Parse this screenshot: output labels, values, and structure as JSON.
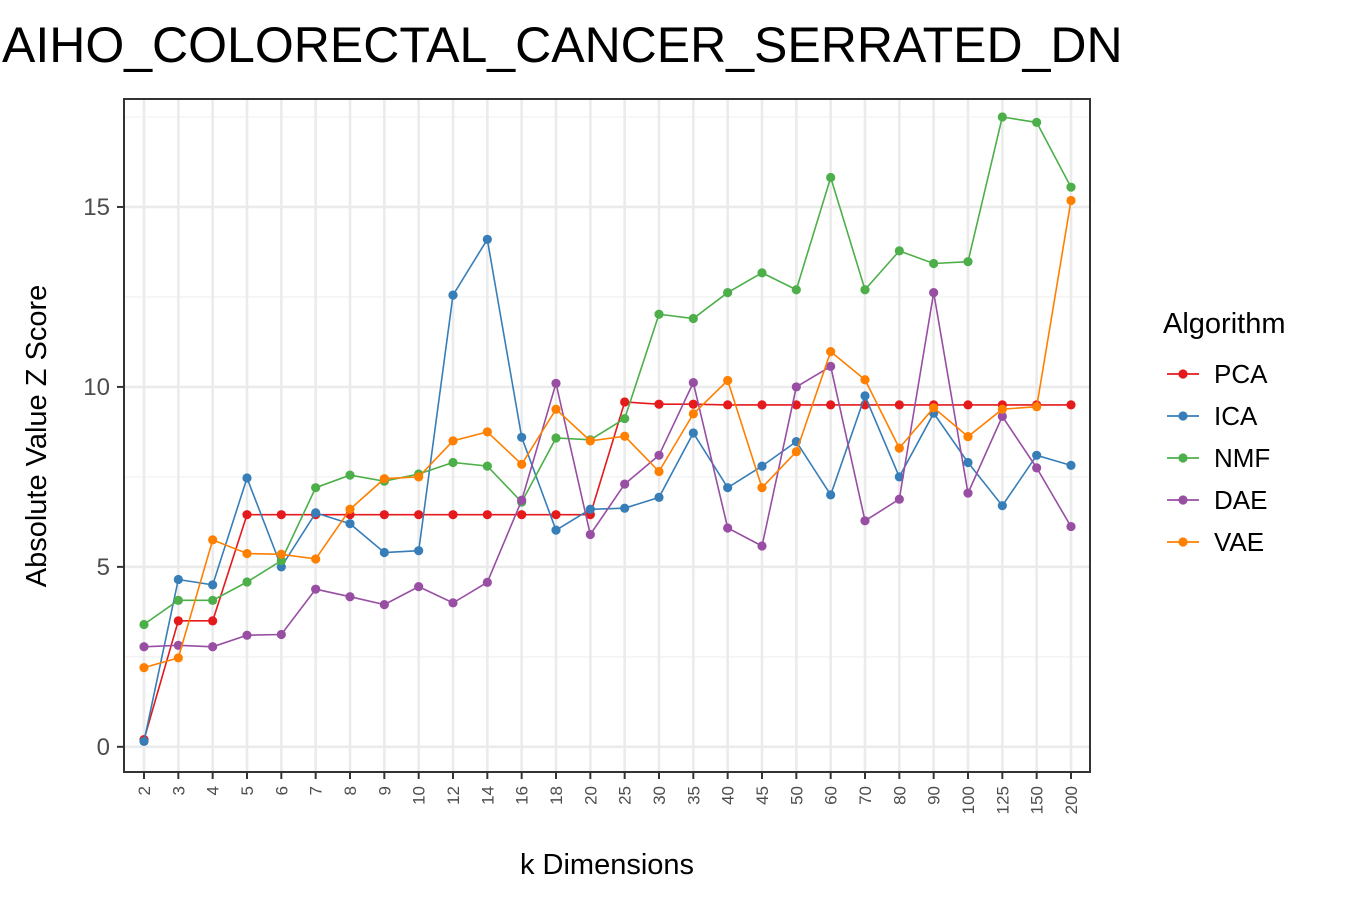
{
  "chart_data": {
    "type": "line",
    "title": "AIHO_COLORECTAL_CANCER_SERRATED_DN",
    "xlabel": "k Dimensions",
    "ylabel": "Absolute Value Z Score",
    "ylim": [
      -0.7,
      18.0
    ],
    "yticks": [
      0,
      5,
      10,
      15
    ],
    "grid": true,
    "legend_title": "Algorithm",
    "legend_position": "right",
    "categories": [
      "2",
      "3",
      "4",
      "5",
      "6",
      "7",
      "8",
      "9",
      "10",
      "12",
      "14",
      "16",
      "18",
      "20",
      "25",
      "30",
      "35",
      "40",
      "45",
      "50",
      "60",
      "70",
      "80",
      "90",
      "100",
      "125",
      "150",
      "200"
    ],
    "series": [
      {
        "name": "PCA",
        "color": "#e41a1c",
        "values": [
          0.2,
          3.5,
          3.5,
          6.45,
          6.45,
          6.45,
          6.45,
          6.45,
          6.45,
          6.45,
          6.45,
          6.45,
          6.45,
          6.45,
          9.58,
          9.52,
          9.52,
          9.5,
          9.5,
          9.5,
          9.5,
          9.5,
          9.5,
          9.5,
          9.5,
          9.5,
          9.5,
          9.5
        ]
      },
      {
        "name": "ICA",
        "color": "#377eb8",
        "values": [
          0.15,
          4.65,
          4.5,
          7.47,
          5.0,
          6.5,
          6.2,
          5.4,
          5.45,
          12.55,
          14.1,
          8.6,
          6.02,
          6.6,
          6.63,
          6.93,
          8.72,
          7.2,
          7.8,
          8.48,
          7.0,
          9.75,
          7.5,
          9.27,
          7.9,
          6.7,
          8.1,
          7.82
        ]
      },
      {
        "name": "NMF",
        "color": "#4daf4a",
        "values": [
          3.4,
          4.07,
          4.07,
          4.58,
          5.17,
          7.2,
          7.55,
          7.38,
          7.58,
          7.9,
          7.8,
          6.8,
          8.58,
          8.53,
          9.12,
          12.02,
          11.9,
          12.62,
          13.17,
          12.7,
          15.82,
          12.7,
          13.78,
          13.43,
          13.48,
          17.5,
          17.35,
          15.55
        ]
      },
      {
        "name": "DAE",
        "color": "#984ea3",
        "values": [
          2.78,
          2.82,
          2.78,
          3.1,
          3.12,
          4.38,
          4.17,
          3.95,
          4.45,
          4.0,
          4.57,
          6.85,
          10.1,
          5.9,
          7.3,
          8.1,
          10.12,
          6.08,
          5.58,
          10.0,
          10.57,
          6.28,
          6.88,
          12.62,
          7.05,
          9.18,
          7.75,
          6.12
        ]
      },
      {
        "name": "VAE",
        "color": "#ff7f00",
        "values": [
          2.2,
          2.47,
          5.75,
          5.37,
          5.35,
          5.22,
          6.6,
          7.45,
          7.5,
          8.5,
          8.75,
          7.85,
          9.38,
          8.5,
          8.63,
          7.65,
          9.25,
          10.18,
          7.2,
          8.2,
          10.98,
          10.2,
          8.3,
          9.42,
          8.62,
          9.38,
          9.45,
          15.18
        ]
      }
    ]
  }
}
